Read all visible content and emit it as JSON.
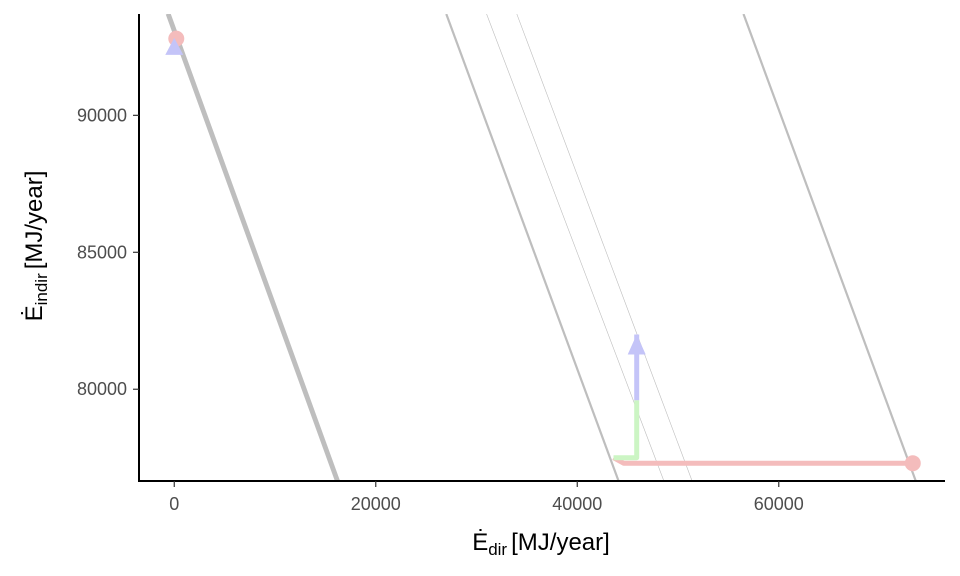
{
  "chart_data": {
    "type": "line",
    "title": "",
    "xlabel": {
      "symbol": "Ė",
      "subscript": "dir",
      "unit": "[MJ/year]"
    },
    "ylabel": {
      "symbol": "Ė",
      "subscript": "indir",
      "unit": "[MJ/year]"
    },
    "xlim": [
      -3500,
      76500
    ],
    "ylim": [
      76650,
      93700
    ],
    "x_ticks": [
      0,
      20000,
      40000,
      60000
    ],
    "x_tick_labels": [
      "0",
      "20000",
      "40000",
      "60000"
    ],
    "y_ticks": [
      80000,
      85000,
      90000
    ],
    "y_tick_labels": [
      "80000",
      "85000",
      "90000"
    ],
    "grid": false,
    "colors": {
      "constant_lines": "#bebebe",
      "segment_red": "#f4bcbc",
      "segment_green": "#ccf5c4",
      "segment_blue": "#c4c4f8"
    },
    "constant_lines": [
      {
        "x1": -700,
        "y1": 93700,
        "x2": 16100,
        "y2": 76650,
        "weight": "heavy"
      },
      {
        "x1": -500,
        "y1": 93700,
        "x2": 16300,
        "y2": 76650,
        "weight": "heavy"
      },
      {
        "x1": 27000,
        "y1": 93700,
        "x2": 44100,
        "y2": 76650,
        "weight": "medium"
      },
      {
        "x1": 31000,
        "y1": 93700,
        "x2": 48600,
        "y2": 76650,
        "weight": "thin"
      },
      {
        "x1": 34000,
        "y1": 93700,
        "x2": 51400,
        "y2": 76650,
        "weight": "thin"
      },
      {
        "x1": 56500,
        "y1": 93700,
        "x2": 73600,
        "y2": 76650,
        "weight": "medium"
      }
    ],
    "path_segments": [
      {
        "name": "red",
        "x": [
          73300,
          44600,
          43600
        ],
        "y": [
          77300,
          77300,
          77500
        ],
        "color": "#f4bcbc"
      },
      {
        "name": "green",
        "x": [
          43600,
          45900,
          45900
        ],
        "y": [
          77500,
          77500,
          79600
        ],
        "color": "#ccf5c4"
      },
      {
        "name": "blue",
        "x": [
          45900,
          45900
        ],
        "y": [
          79600,
          82000
        ],
        "color": "#c4c4f8"
      }
    ],
    "points": [
      {
        "x": 200,
        "y": 92800,
        "shape": "circle",
        "color": "#f4bcbc"
      },
      {
        "x": 73300,
        "y": 77300,
        "shape": "circle",
        "color": "#f4bcbc"
      },
      {
        "x": 0,
        "y": 92500,
        "shape": "triangle",
        "color": "#c4c4f8"
      }
    ],
    "arrows": [
      {
        "x": 45900,
        "y_from": 79600,
        "y_to": 82000,
        "color": "#c4c4f8"
      }
    ]
  }
}
